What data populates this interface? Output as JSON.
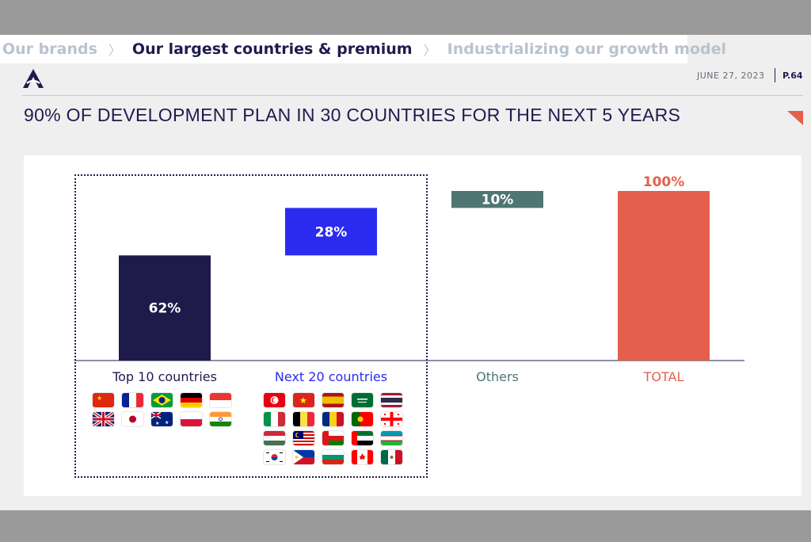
{
  "breadcrumb": {
    "items": [
      {
        "label": "Our brands",
        "state": "dim"
      },
      {
        "label": "Our largest countries & premium",
        "state": "active"
      },
      {
        "label": "Industrializing our growth model",
        "state": "dim"
      }
    ],
    "separator": "〉"
  },
  "header": {
    "logo_icon": "accor-a-logo-icon",
    "date": "JUNE 27, 2023",
    "page": "P.64"
  },
  "slide": {
    "title": "90% OF DEVELOPMENT PLAN IN 30 COUNTRIES FOR THE NEXT 5 YEARS"
  },
  "colors": {
    "navy": "#1e1b4b",
    "blue": "#2b2bef",
    "teal": "#4f7672",
    "coral": "#e5604c"
  },
  "chart_data": {
    "type": "bar",
    "subtype": "waterfall",
    "categories": [
      "Top 10 countries",
      "Next 20 countries",
      "Others",
      "TOTAL"
    ],
    "values": [
      62,
      28,
      10,
      100
    ],
    "labels": [
      "62%",
      "28%",
      "10%",
      "100%"
    ],
    "colors": [
      "#1e1b4b",
      "#2b2bef",
      "#4f7672",
      "#e5604c"
    ],
    "category_colors": [
      "#1e1c4e",
      "#2b2bef",
      "#4f7672",
      "#e5604c"
    ],
    "ylim": [
      0,
      100
    ],
    "grid": false,
    "legend": "none"
  },
  "flags": {
    "top10": [
      "flag-china-icon",
      "flag-france-icon",
      "flag-brazil-icon",
      "flag-germany-icon",
      "flag-indonesia-icon",
      "flag-uk-icon",
      "flag-japan-icon",
      "flag-australia-icon",
      "flag-poland-icon",
      "flag-india-icon"
    ],
    "next20": [
      "flag-tunisia-icon",
      "flag-vietnam-icon",
      "flag-spain-icon",
      "flag-saudi-arabia-icon",
      "flag-thailand-icon",
      "flag-italy-icon",
      "flag-belgium-icon",
      "flag-romania-icon",
      "flag-portugal-icon",
      "flag-georgia-icon",
      "flag-hungary-icon",
      "flag-malaysia-icon",
      "flag-oman-icon",
      "flag-uae-icon",
      "flag-uzbekistan-icon",
      "flag-south-korea-icon",
      "flag-philippines-icon",
      "flag-bulgaria-icon",
      "flag-canada-icon",
      "flag-mexico-icon"
    ]
  }
}
